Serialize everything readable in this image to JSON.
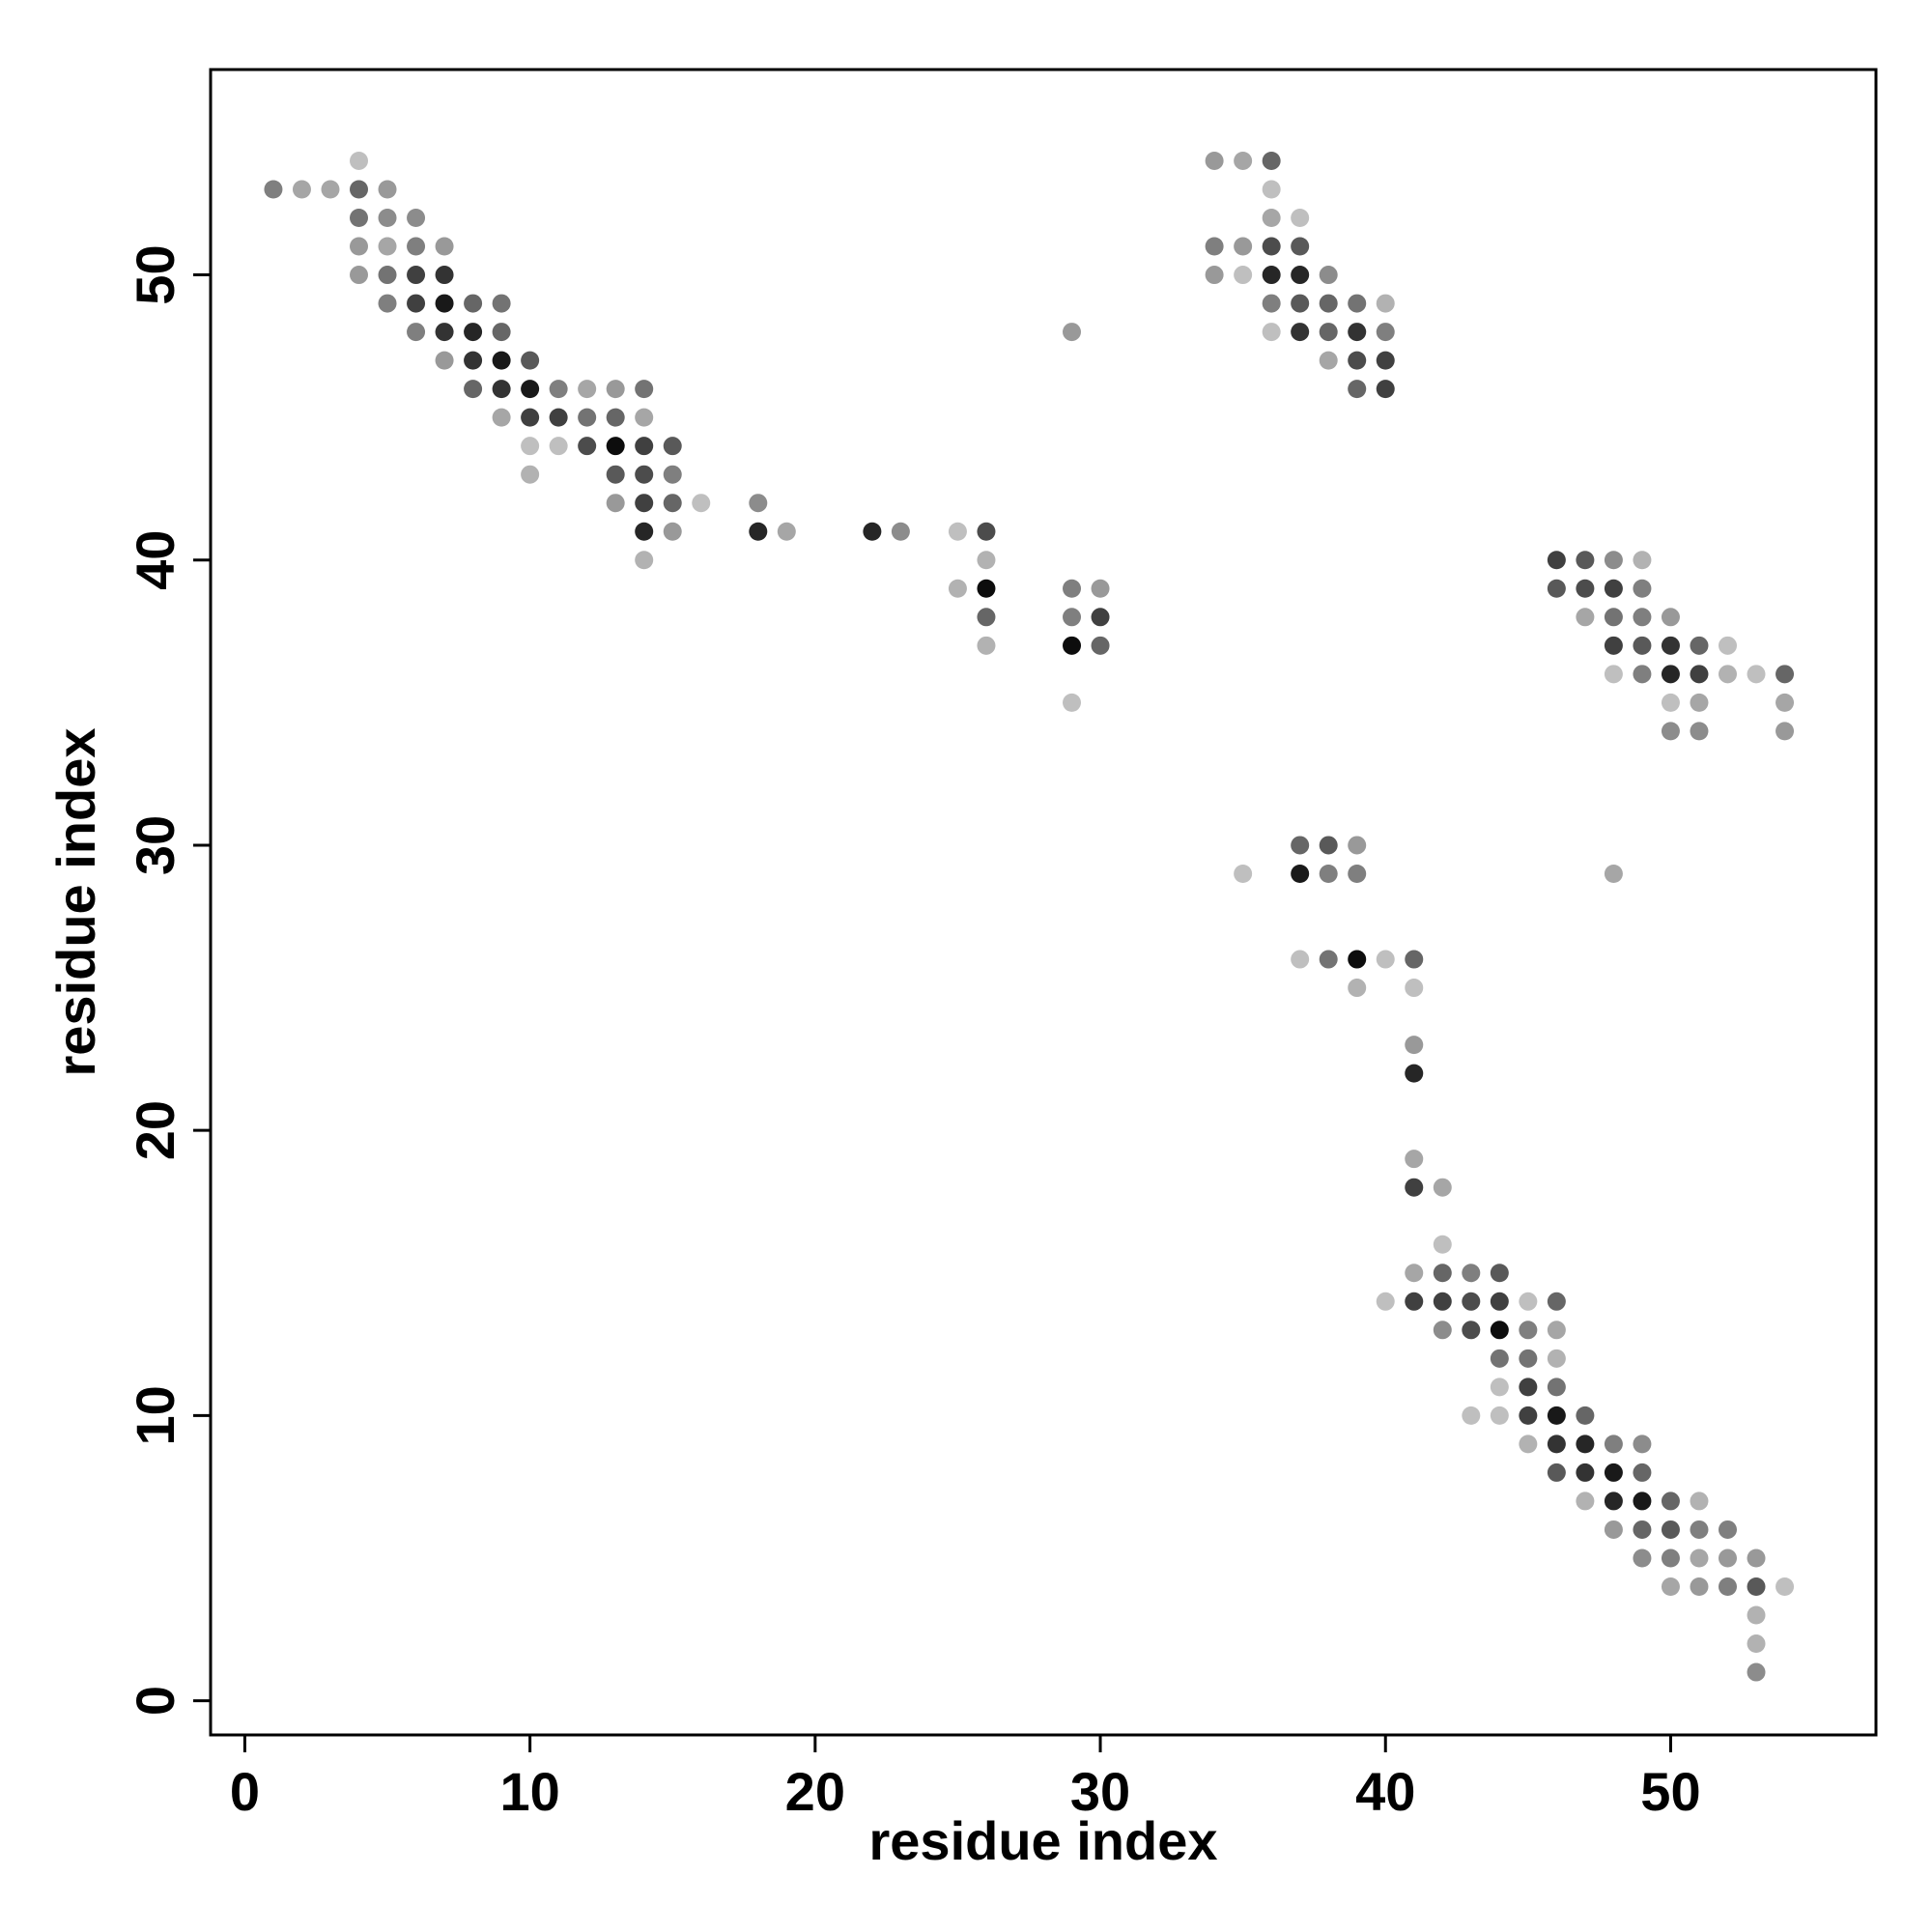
{
  "chart_data": {
    "type": "scatter",
    "xlabel": "residue index",
    "ylabel": "residue index",
    "xlim": [
      -1.2,
      57.2
    ],
    "ylim": [
      -1.2,
      57.2
    ],
    "xticks": [
      0,
      10,
      20,
      30,
      40,
      50
    ],
    "yticks": [
      0,
      10,
      20,
      30,
      40,
      50
    ],
    "grid": false,
    "legend": "none",
    "marker_color": "#000000",
    "points": [
      [
        1,
        53,
        0.5
      ],
      [
        2,
        53,
        0.35
      ],
      [
        3,
        53,
        0.35
      ],
      [
        4,
        54,
        0.25
      ],
      [
        4,
        53,
        0.6
      ],
      [
        4,
        52,
        0.55
      ],
      [
        4,
        51,
        0.4
      ],
      [
        4,
        50,
        0.4
      ],
      [
        5,
        53,
        0.4
      ],
      [
        5,
        52,
        0.45
      ],
      [
        5,
        51,
        0.35
      ],
      [
        5,
        50,
        0.55
      ],
      [
        5,
        49,
        0.5
      ],
      [
        6,
        52,
        0.45
      ],
      [
        6,
        51,
        0.5
      ],
      [
        6,
        50,
        0.75
      ],
      [
        6,
        49,
        0.75
      ],
      [
        6,
        48,
        0.5
      ],
      [
        7,
        51,
        0.4
      ],
      [
        7,
        50,
        0.8
      ],
      [
        7,
        49,
        0.9
      ],
      [
        7,
        48,
        0.8
      ],
      [
        7,
        47,
        0.4
      ],
      [
        8,
        49,
        0.6
      ],
      [
        8,
        48,
        0.85
      ],
      [
        8,
        47,
        0.8
      ],
      [
        8,
        46,
        0.6
      ],
      [
        9,
        49,
        0.55
      ],
      [
        9,
        48,
        0.6
      ],
      [
        9,
        47,
        0.9
      ],
      [
        9,
        46,
        0.8
      ],
      [
        9,
        45,
        0.35
      ],
      [
        10,
        47,
        0.65
      ],
      [
        10,
        46,
        0.9
      ],
      [
        10,
        45,
        0.75
      ],
      [
        10,
        44,
        0.25
      ],
      [
        10,
        43,
        0.3
      ],
      [
        11,
        46,
        0.5
      ],
      [
        11,
        45,
        0.75
      ],
      [
        11,
        44,
        0.25
      ],
      [
        12,
        46,
        0.35
      ],
      [
        12,
        45,
        0.55
      ],
      [
        12,
        44,
        0.7
      ],
      [
        13,
        46,
        0.4
      ],
      [
        13,
        45,
        0.6
      ],
      [
        13,
        44,
        0.95
      ],
      [
        13,
        43,
        0.65
      ],
      [
        13,
        42,
        0.4
      ],
      [
        14,
        46,
        0.55
      ],
      [
        14,
        45,
        0.35
      ],
      [
        14,
        44,
        0.75
      ],
      [
        14,
        43,
        0.7
      ],
      [
        14,
        42,
        0.75
      ],
      [
        14,
        41,
        0.85
      ],
      [
        14,
        40,
        0.3
      ],
      [
        15,
        44,
        0.65
      ],
      [
        15,
        43,
        0.5
      ],
      [
        15,
        42,
        0.6
      ],
      [
        15,
        41,
        0.4
      ],
      [
        16,
        42,
        0.25
      ],
      [
        18,
        42,
        0.45
      ],
      [
        18,
        41,
        0.85
      ],
      [
        19,
        41,
        0.35
      ],
      [
        22,
        41,
        0.85
      ],
      [
        23,
        41,
        0.45
      ],
      [
        25,
        41,
        0.25
      ],
      [
        25,
        39,
        0.3
      ],
      [
        26,
        41,
        0.7
      ],
      [
        26,
        40,
        0.3
      ],
      [
        26,
        39,
        0.95
      ],
      [
        26,
        38,
        0.6
      ],
      [
        26,
        37,
        0.3
      ],
      [
        29,
        48,
        0.4
      ],
      [
        29,
        39,
        0.5
      ],
      [
        29,
        38,
        0.5
      ],
      [
        29,
        37,
        0.95
      ],
      [
        29,
        35,
        0.25
      ],
      [
        30,
        39,
        0.4
      ],
      [
        30,
        38,
        0.75
      ],
      [
        30,
        37,
        0.6
      ],
      [
        34,
        54,
        0.4
      ],
      [
        34,
        51,
        0.5
      ],
      [
        34,
        50,
        0.4
      ],
      [
        35,
        54,
        0.35
      ],
      [
        35,
        51,
        0.4
      ],
      [
        35,
        50,
        0.25
      ],
      [
        35,
        29,
        0.25
      ],
      [
        36,
        54,
        0.6
      ],
      [
        36,
        53,
        0.25
      ],
      [
        36,
        52,
        0.35
      ],
      [
        36,
        51,
        0.7
      ],
      [
        36,
        50,
        0.85
      ],
      [
        36,
        49,
        0.5
      ],
      [
        36,
        48,
        0.25
      ],
      [
        37,
        52,
        0.25
      ],
      [
        37,
        51,
        0.65
      ],
      [
        37,
        50,
        0.85
      ],
      [
        37,
        49,
        0.65
      ],
      [
        37,
        48,
        0.8
      ],
      [
        37,
        30,
        0.6
      ],
      [
        37,
        29,
        0.9
      ],
      [
        37,
        26,
        0.25
      ],
      [
        38,
        50,
        0.45
      ],
      [
        38,
        49,
        0.6
      ],
      [
        38,
        48,
        0.6
      ],
      [
        38,
        47,
        0.35
      ],
      [
        38,
        30,
        0.65
      ],
      [
        38,
        29,
        0.5
      ],
      [
        38,
        26,
        0.55
      ],
      [
        39,
        49,
        0.55
      ],
      [
        39,
        48,
        0.8
      ],
      [
        39,
        47,
        0.7
      ],
      [
        39,
        46,
        0.6
      ],
      [
        39,
        30,
        0.4
      ],
      [
        39,
        29,
        0.5
      ],
      [
        39,
        26,
        0.95
      ],
      [
        39,
        25,
        0.3
      ],
      [
        40,
        49,
        0.3
      ],
      [
        40,
        48,
        0.5
      ],
      [
        40,
        47,
        0.75
      ],
      [
        40,
        46,
        0.75
      ],
      [
        40,
        26,
        0.25
      ],
      [
        40,
        14,
        0.25
      ],
      [
        41,
        26,
        0.6
      ],
      [
        41,
        25,
        0.25
      ],
      [
        41,
        23,
        0.4
      ],
      [
        41,
        22,
        0.85
      ],
      [
        41,
        19,
        0.35
      ],
      [
        41,
        18,
        0.75
      ],
      [
        41,
        15,
        0.35
      ],
      [
        41,
        14,
        0.75
      ],
      [
        42,
        18,
        0.35
      ],
      [
        42,
        16,
        0.25
      ],
      [
        42,
        15,
        0.6
      ],
      [
        42,
        14,
        0.75
      ],
      [
        42,
        13,
        0.45
      ],
      [
        43,
        15,
        0.5
      ],
      [
        43,
        14,
        0.7
      ],
      [
        43,
        13,
        0.7
      ],
      [
        43,
        10,
        0.25
      ],
      [
        44,
        15,
        0.65
      ],
      [
        44,
        14,
        0.75
      ],
      [
        44,
        13,
        0.95
      ],
      [
        44,
        12,
        0.55
      ],
      [
        44,
        11,
        0.25
      ],
      [
        44,
        10,
        0.25
      ],
      [
        45,
        14,
        0.25
      ],
      [
        45,
        13,
        0.5
      ],
      [
        45,
        12,
        0.55
      ],
      [
        45,
        11,
        0.75
      ],
      [
        45,
        10,
        0.75
      ],
      [
        45,
        9,
        0.3
      ],
      [
        46,
        40,
        0.75
      ],
      [
        46,
        39,
        0.65
      ],
      [
        46,
        14,
        0.6
      ],
      [
        46,
        13,
        0.35
      ],
      [
        46,
        12,
        0.3
      ],
      [
        46,
        11,
        0.55
      ],
      [
        46,
        10,
        0.9
      ],
      [
        46,
        9,
        0.8
      ],
      [
        46,
        8,
        0.65
      ],
      [
        47,
        40,
        0.65
      ],
      [
        47,
        39,
        0.7
      ],
      [
        47,
        38,
        0.35
      ],
      [
        47,
        10,
        0.6
      ],
      [
        47,
        9,
        0.85
      ],
      [
        47,
        8,
        0.8
      ],
      [
        47,
        7,
        0.3
      ],
      [
        48,
        40,
        0.45
      ],
      [
        48,
        39,
        0.75
      ],
      [
        48,
        38,
        0.55
      ],
      [
        48,
        37,
        0.75
      ],
      [
        48,
        36,
        0.25
      ],
      [
        48,
        29,
        0.35
      ],
      [
        48,
        9,
        0.5
      ],
      [
        48,
        8,
        0.9
      ],
      [
        48,
        7,
        0.85
      ],
      [
        48,
        6,
        0.4
      ],
      [
        49,
        40,
        0.3
      ],
      [
        49,
        39,
        0.5
      ],
      [
        49,
        38,
        0.5
      ],
      [
        49,
        37,
        0.65
      ],
      [
        49,
        36,
        0.5
      ],
      [
        49,
        9,
        0.45
      ],
      [
        49,
        8,
        0.6
      ],
      [
        49,
        7,
        0.9
      ],
      [
        49,
        6,
        0.6
      ],
      [
        49,
        5,
        0.45
      ],
      [
        50,
        38,
        0.4
      ],
      [
        50,
        37,
        0.8
      ],
      [
        50,
        36,
        0.85
      ],
      [
        50,
        35,
        0.25
      ],
      [
        50,
        34,
        0.45
      ],
      [
        50,
        7,
        0.6
      ],
      [
        50,
        6,
        0.65
      ],
      [
        50,
        5,
        0.5
      ],
      [
        50,
        4,
        0.35
      ],
      [
        51,
        37,
        0.6
      ],
      [
        51,
        36,
        0.75
      ],
      [
        51,
        35,
        0.35
      ],
      [
        51,
        34,
        0.45
      ],
      [
        51,
        7,
        0.3
      ],
      [
        51,
        6,
        0.5
      ],
      [
        51,
        5,
        0.35
      ],
      [
        51,
        4,
        0.4
      ],
      [
        52,
        37,
        0.25
      ],
      [
        52,
        36,
        0.3
      ],
      [
        52,
        6,
        0.5
      ],
      [
        52,
        5,
        0.4
      ],
      [
        52,
        4,
        0.5
      ],
      [
        53,
        36,
        0.25
      ],
      [
        53,
        5,
        0.4
      ],
      [
        53,
        4,
        0.65
      ],
      [
        53,
        3,
        0.3
      ],
      [
        53,
        2,
        0.3
      ],
      [
        53,
        1,
        0.45
      ],
      [
        54,
        36,
        0.6
      ],
      [
        54,
        35,
        0.35
      ],
      [
        54,
        34,
        0.4
      ],
      [
        54,
        4,
        0.25
      ]
    ]
  }
}
